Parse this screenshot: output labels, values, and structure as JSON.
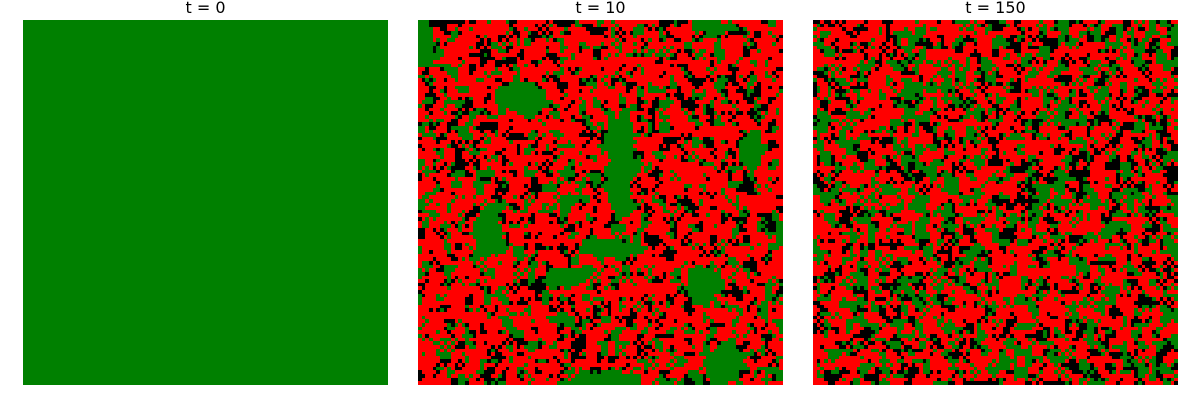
{
  "palette": {
    "green": "#008000",
    "red": "#ff0000",
    "black": "#000000"
  },
  "chart_data": [
    {
      "type": "heatmap",
      "title": "t = 0"
    },
    {
      "type": "heatmap",
      "title": "t = 10"
    },
    {
      "type": "heatmap",
      "title": "t = 150"
    }
  ]
}
